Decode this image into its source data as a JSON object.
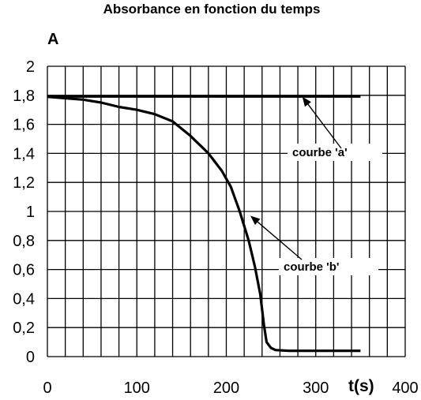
{
  "chart_data": {
    "type": "line",
    "title": "Absorbance en fonction du temps",
    "ylabel": "A",
    "xlabel": "t(s)",
    "xlim": [
      0,
      400
    ],
    "ylim": [
      0,
      2
    ],
    "x_ticks": [
      "0",
      "100",
      "200",
      "300",
      "400"
    ],
    "y_ticks": [
      "0",
      "0,2",
      "0,4",
      "0,6",
      "0,8",
      "1",
      "1,2",
      "1,4",
      "1,6",
      "1,8",
      "2"
    ],
    "grid": true,
    "series": [
      {
        "name": "courbe 'a'",
        "x": [
          0,
          350
        ],
        "y": [
          1.79,
          1.79
        ]
      },
      {
        "name": "courbe 'b'",
        "x": [
          0,
          20,
          40,
          60,
          80,
          100,
          120,
          140,
          160,
          180,
          195,
          205,
          215,
          225,
          232,
          238,
          242,
          245,
          250,
          255,
          270,
          300,
          350
        ],
        "y": [
          1.79,
          1.78,
          1.77,
          1.75,
          1.72,
          1.7,
          1.67,
          1.62,
          1.52,
          1.4,
          1.28,
          1.17,
          1.0,
          0.8,
          0.62,
          0.43,
          0.22,
          0.1,
          0.06,
          0.045,
          0.04,
          0.04,
          0.04
        ]
      }
    ],
    "annotations": [
      {
        "text": "courbe 'a'",
        "points_to": [
          285,
          1.79
        ]
      },
      {
        "text": "courbe 'b'",
        "points_to": [
          227,
          0.97
        ]
      }
    ]
  }
}
